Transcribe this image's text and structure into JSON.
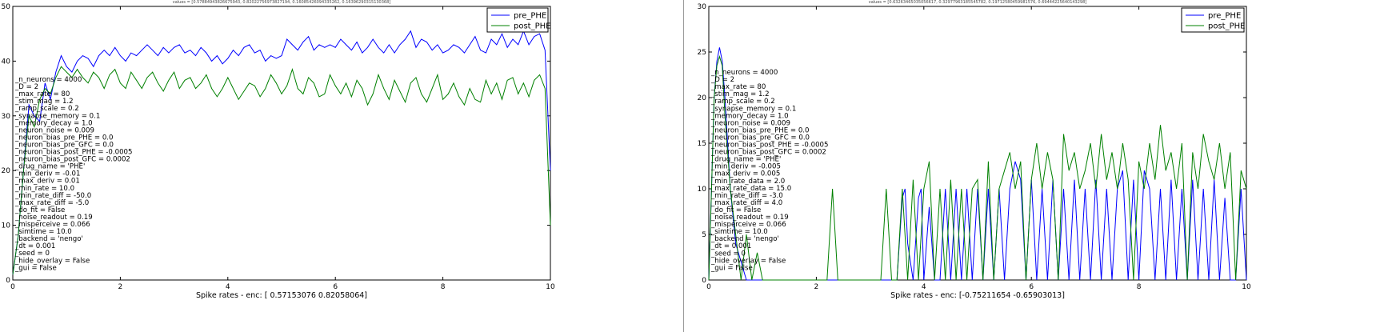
{
  "chart_data": [
    {
      "type": "line",
      "top_text": "values = [0.57884943826675943, 0.82022756973827194, 0.16085426094335262, 0.16396290315130368]",
      "xlabel": "Spike rates - enc: [ 0.57153076  0.82058064]",
      "xlim": [
        0,
        10
      ],
      "ylim": [
        0,
        50
      ],
      "xticks": [
        "0",
        "2",
        "4",
        "6",
        "8",
        "10"
      ],
      "yticks": [
        "0",
        "10",
        "20",
        "30",
        "40",
        "50"
      ],
      "legend_position": "top-right",
      "legend": [
        "pre_PHE",
        "post_PHE"
      ],
      "series": [
        {
          "name": "pre_PHE",
          "color": "#0000ff",
          "x": [
            0,
            0.1,
            0.2,
            0.3,
            0.4,
            0.5,
            0.6,
            0.7,
            0.8,
            0.9,
            1.0,
            1.1,
            1.2,
            1.3,
            1.4,
            1.5,
            1.6,
            1.7,
            1.8,
            1.9,
            2.0,
            2.1,
            2.2,
            2.3,
            2.4,
            2.5,
            2.6,
            2.7,
            2.8,
            2.9,
            3.0,
            3.1,
            3.2,
            3.3,
            3.4,
            3.5,
            3.6,
            3.7,
            3.8,
            3.9,
            4.0,
            4.1,
            4.2,
            4.3,
            4.4,
            4.5,
            4.6,
            4.7,
            4.8,
            4.9,
            5.0,
            5.1,
            5.2,
            5.3,
            5.4,
            5.5,
            5.6,
            5.7,
            5.8,
            5.9,
            6.0,
            6.1,
            6.2,
            6.3,
            6.4,
            6.5,
            6.6,
            6.7,
            6.8,
            6.9,
            7.0,
            7.1,
            7.2,
            7.3,
            7.4,
            7.5,
            7.6,
            7.7,
            7.8,
            7.9,
            8.0,
            8.1,
            8.2,
            8.3,
            8.4,
            8.5,
            8.6,
            8.7,
            8.8,
            8.9,
            9.0,
            9.1,
            9.2,
            9.3,
            9.4,
            9.5,
            9.6,
            9.7,
            9.8,
            9.9,
            10.0
          ],
          "y": [
            1,
            8,
            20,
            32,
            30,
            29,
            36,
            33,
            38,
            41,
            39,
            38,
            40,
            41,
            40.5,
            39,
            41,
            42,
            41,
            42.5,
            41,
            40,
            41.5,
            41,
            42,
            43,
            42,
            41,
            42.5,
            41.5,
            42.5,
            43,
            41.5,
            42,
            41,
            42.5,
            41.5,
            40,
            41,
            39.5,
            40.5,
            42,
            41,
            42.5,
            43,
            41.5,
            42,
            40,
            41,
            40.5,
            41,
            44,
            43,
            42,
            43.5,
            44.5,
            42,
            43,
            42.5,
            43,
            42.5,
            44,
            43,
            42,
            43.5,
            41.5,
            42.5,
            44,
            42.5,
            41.5,
            43,
            41.5,
            43,
            44,
            45.5,
            42.5,
            44,
            43.5,
            42,
            43,
            41.5,
            42,
            43,
            42.5,
            41.5,
            43,
            44.5,
            42,
            41.5,
            44,
            43,
            45,
            42.5,
            44,
            43,
            45.5,
            43,
            44.5,
            45,
            42,
            20
          ]
        },
        {
          "name": "post_PHE",
          "color": "#008000",
          "x": [
            0,
            0.1,
            0.2,
            0.3,
            0.4,
            0.5,
            0.6,
            0.7,
            0.8,
            0.9,
            1.0,
            1.1,
            1.2,
            1.3,
            1.4,
            1.5,
            1.6,
            1.7,
            1.8,
            1.9,
            2.0,
            2.1,
            2.2,
            2.3,
            2.4,
            2.5,
            2.6,
            2.7,
            2.8,
            2.9,
            3.0,
            3.1,
            3.2,
            3.3,
            3.4,
            3.5,
            3.6,
            3.7,
            3.8,
            3.9,
            4.0,
            4.1,
            4.2,
            4.3,
            4.4,
            4.5,
            4.6,
            4.7,
            4.8,
            4.9,
            5.0,
            5.1,
            5.2,
            5.3,
            5.4,
            5.5,
            5.6,
            5.7,
            5.8,
            5.9,
            6.0,
            6.1,
            6.2,
            6.3,
            6.4,
            6.5,
            6.6,
            6.7,
            6.8,
            6.9,
            7.0,
            7.1,
            7.2,
            7.3,
            7.4,
            7.5,
            7.6,
            7.7,
            7.8,
            7.9,
            8.0,
            8.1,
            8.2,
            8.3,
            8.4,
            8.5,
            8.6,
            8.7,
            8.8,
            8.9,
            9.0,
            9.1,
            9.2,
            9.3,
            9.4,
            9.5,
            9.6,
            9.7,
            9.8,
            9.9,
            10.0
          ],
          "y": [
            1,
            8,
            20,
            30,
            28,
            33,
            35,
            34,
            37,
            39,
            38,
            37,
            38.5,
            37,
            36,
            38,
            37,
            35,
            37.5,
            38.5,
            36,
            35,
            38,
            36.5,
            35,
            37,
            38,
            36,
            34.5,
            36.5,
            38,
            35,
            36.5,
            37,
            35,
            36,
            37.5,
            35,
            33.5,
            35,
            37,
            35,
            33,
            34.5,
            36,
            35.5,
            33.5,
            35,
            37.5,
            36,
            34,
            35.5,
            38.5,
            35,
            34,
            37,
            36,
            33.5,
            34,
            37.5,
            35.5,
            34,
            36,
            33.5,
            36.5,
            35,
            32,
            34,
            37.5,
            35,
            33,
            36.5,
            34.5,
            32.5,
            36,
            37,
            34,
            32.5,
            35,
            37.5,
            33,
            34,
            36,
            33.5,
            32,
            35,
            33,
            32.5,
            36.5,
            34,
            36,
            33,
            36.5,
            37,
            34,
            36,
            33.5,
            36.5,
            37.5,
            35,
            10
          ]
        }
      ],
      "overlay": [
        "_n_neurons = 4000",
        "_D = 2",
        "_max_rate = 80",
        "_stim_mag = 1.2",
        "_ramp_scale = 0.2",
        "_synapse_memory = 0.1",
        "_memory_decay = 1.0",
        "_neuron_noise = 0.009",
        "_neuron_bias_pre_PHE = 0.0",
        "_neuron_bias_pre_GFC = 0.0",
        "_neuron_bias_post_PHE = -0.0005",
        "_neuron_bias_post_GFC = 0.0002",
        "_drug_name = 'PHE'",
        "_min_deriv = -0.01",
        "_max_deriv = 0.01",
        "_min_rate = 10.0",
        "_min_rate_diff = -50.0",
        "_max_rate_diff = -5.0",
        "_do_fit = False",
        "_noise_readout = 0.19",
        "_misperceive = 0.066",
        "_simtime = 10.0",
        "_backend = 'nengo'",
        "_dt = 0.001",
        "_seed = 0",
        "_hide_overlay = False",
        "_gui = False"
      ]
    },
    {
      "type": "line",
      "top_text": "values = [0.63263465035056617, 0.32977963185545782, 0.19712580459981576, 0.69444225640143298]",
      "xlabel": "Spike rates - enc: [-0.75211654 -0.65903013]",
      "xlim": [
        0,
        10
      ],
      "ylim": [
        0,
        30
      ],
      "xticks": [
        "0",
        "2",
        "4",
        "6",
        "8",
        "10"
      ],
      "yticks": [
        "0",
        "5",
        "10",
        "15",
        "20",
        "25",
        "30"
      ],
      "legend_position": "top-right",
      "legend": [
        "pre_PHE",
        "post_PHE"
      ],
      "series": [
        {
          "name": "pre_PHE",
          "color": "#0000ff",
          "x": [
            0,
            0.05,
            0.1,
            0.15,
            0.2,
            0.25,
            0.3,
            0.4,
            0.5,
            0.6,
            0.7,
            0.8,
            3.5,
            3.6,
            3.65,
            3.7,
            3.8,
            3.9,
            3.95,
            4.0,
            4.1,
            4.2,
            4.3,
            4.4,
            4.5,
            4.6,
            4.7,
            4.8,
            4.9,
            5.0,
            5.1,
            5.2,
            5.3,
            5.4,
            5.5,
            5.6,
            5.7,
            5.8,
            5.9,
            6.0,
            6.1,
            6.2,
            6.3,
            6.4,
            6.5,
            6.6,
            6.7,
            6.8,
            6.9,
            7.0,
            7.1,
            7.2,
            7.3,
            7.4,
            7.5,
            7.6,
            7.7,
            7.8,
            7.9,
            8.0,
            8.1,
            8.2,
            8.3,
            8.4,
            8.5,
            8.6,
            8.7,
            8.8,
            8.9,
            9.0,
            9.1,
            9.2,
            9.3,
            9.4,
            9.5,
            9.6,
            9.7,
            9.8,
            9.9,
            10.0
          ],
          "y": [
            0,
            10,
            20,
            24,
            25.5,
            24,
            20,
            10,
            4,
            2,
            0,
            0,
            0,
            9,
            10,
            4,
            0,
            9,
            10,
            0,
            8,
            0,
            0,
            10,
            0,
            10,
            0,
            10,
            0,
            10,
            0,
            10,
            0,
            10,
            0,
            10,
            13,
            11,
            0,
            11,
            0,
            10,
            0,
            11,
            0,
            10,
            0,
            11,
            0,
            10,
            0,
            11,
            0,
            10,
            0,
            10,
            12,
            0,
            11,
            0,
            12,
            10,
            0,
            10,
            0,
            11,
            0,
            10,
            0,
            11,
            0,
            10,
            0,
            11,
            0,
            9,
            0,
            0,
            10,
            0
          ]
        },
        {
          "name": "post_PHE",
          "color": "#008000",
          "x": [
            0,
            0.05,
            0.1,
            0.15,
            0.2,
            0.25,
            0.3,
            0.4,
            0.5,
            0.6,
            0.7,
            0.8,
            0.9,
            1.0,
            2.2,
            2.3,
            2.4,
            2.5,
            3.2,
            3.3,
            3.4,
            3.5,
            3.6,
            3.7,
            3.8,
            3.9,
            4.0,
            4.1,
            4.2,
            4.3,
            4.4,
            4.5,
            4.6,
            4.7,
            4.8,
            4.9,
            5.0,
            5.1,
            5.2,
            5.3,
            5.4,
            5.5,
            5.6,
            5.7,
            5.8,
            5.9,
            6.0,
            6.1,
            6.2,
            6.3,
            6.4,
            6.5,
            6.6,
            6.7,
            6.8,
            6.9,
            7.0,
            7.1,
            7.2,
            7.3,
            7.4,
            7.5,
            7.6,
            7.7,
            7.8,
            7.9,
            8.0,
            8.1,
            8.2,
            8.3,
            8.4,
            8.5,
            8.6,
            8.7,
            8.8,
            8.9,
            9.0,
            9.1,
            9.2,
            9.3,
            9.4,
            9.5,
            9.6,
            9.7,
            9.8,
            9.9,
            10.0
          ],
          "y": [
            0,
            10,
            20,
            23.5,
            24.5,
            23.5,
            18,
            10,
            5,
            0,
            5,
            0,
            3,
            0,
            0,
            10,
            0,
            0,
            0,
            10,
            0,
            0,
            10,
            0,
            11,
            0,
            10,
            13,
            0,
            10,
            0,
            11,
            0,
            10,
            0,
            10,
            11,
            0,
            13,
            0,
            10,
            12,
            14,
            10,
            13,
            0,
            11,
            15,
            10,
            14,
            11,
            0,
            16,
            12,
            14,
            10,
            12,
            15,
            10,
            16,
            11,
            14,
            10,
            15,
            11,
            0,
            13,
            10,
            15,
            11,
            17,
            12,
            14,
            10,
            15,
            0,
            14,
            10,
            16,
            13,
            11,
            15,
            10,
            14,
            0,
            12,
            10
          ]
        }
      ],
      "overlay": [
        "_n_neurons = 4000",
        "_D = 2",
        "_max_rate = 80",
        "_stim_mag = 1.2",
        "_ramp_scale = 0.2",
        "_synapse_memory = 0.1",
        "_memory_decay = 1.0",
        "_neuron_noise = 0.009",
        "_neuron_bias_pre_PHE = 0.0",
        "_neuron_bias_pre_GFC = 0.0",
        "_neuron_bias_post_PHE = -0.0005",
        "_neuron_bias_post_GFC = 0.0002",
        "_drug_name = 'PHE'",
        "_min_deriv = -0.005",
        "_max_deriv = 0.005",
        "_min_rate_data = 2.0",
        "_max_rate_data = 15.0",
        "_min_rate_diff = -3.0",
        "_max_rate_diff = 4.0",
        "_do_fit = False",
        "_noise_readout = 0.19",
        "_misperceive = 0.066",
        "_simtime = 10.0",
        "_backend = 'nengo'",
        "_dt = 0.001",
        "_seed = 0",
        "_hide_overlay = False",
        "_gui = False"
      ]
    }
  ]
}
